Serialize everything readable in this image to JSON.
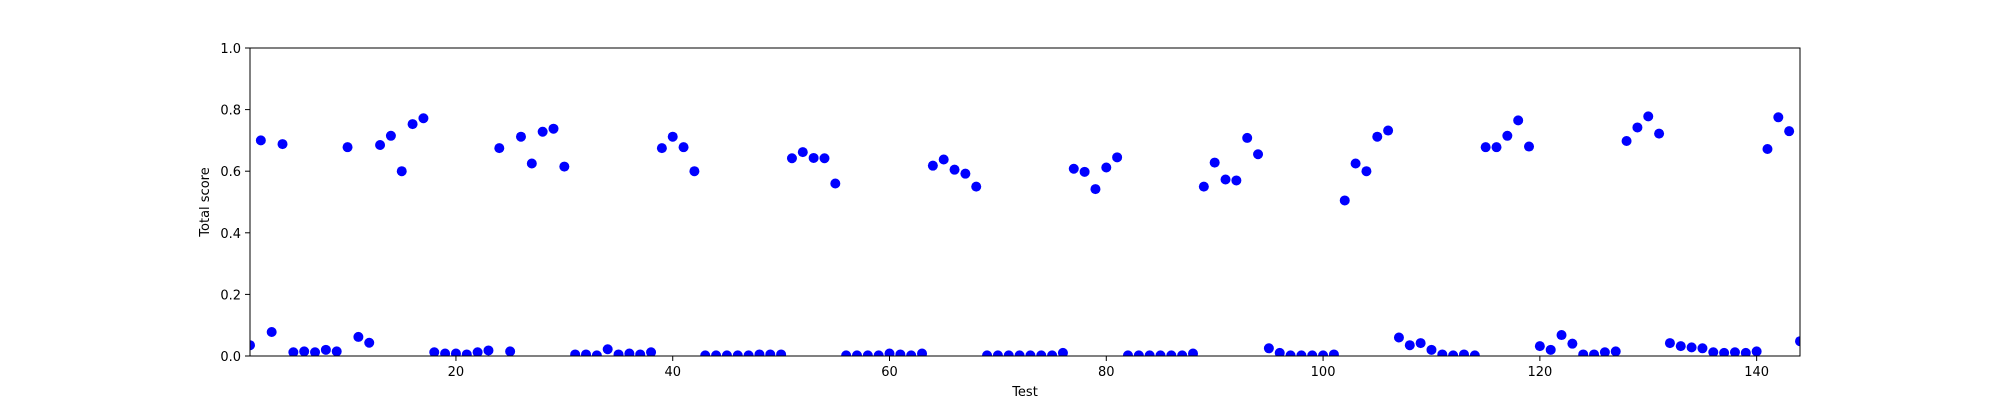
{
  "chart_data": {
    "type": "scatter",
    "title": "",
    "xlabel": "Test",
    "ylabel": "Total score",
    "xlim": [
      1,
      144
    ],
    "ylim": [
      0,
      1.0
    ],
    "xticks": [
      20,
      40,
      60,
      80,
      100,
      120,
      140
    ],
    "yticks": [
      0.0,
      0.2,
      0.4,
      0.6,
      0.8,
      1.0
    ],
    "xtick_labels": [
      "20",
      "40",
      "60",
      "80",
      "100",
      "120",
      "140"
    ],
    "ytick_labels": [
      "0.0",
      "0.2",
      "0.4",
      "0.6",
      "0.8",
      "1.0"
    ],
    "grid": false,
    "marker_color": "#0000ff",
    "x": [
      1,
      2,
      3,
      4,
      5,
      6,
      7,
      8,
      9,
      10,
      11,
      12,
      13,
      14,
      15,
      16,
      17,
      18,
      19,
      20,
      21,
      22,
      23,
      24,
      25,
      26,
      27,
      28,
      29,
      30,
      31,
      32,
      33,
      34,
      35,
      36,
      37,
      38,
      39,
      40,
      41,
      42,
      43,
      44,
      45,
      46,
      47,
      48,
      49,
      50,
      51,
      52,
      53,
      54,
      55,
      56,
      57,
      58,
      59,
      60,
      61,
      62,
      63,
      64,
      65,
      66,
      67,
      68,
      69,
      70,
      71,
      72,
      73,
      74,
      75,
      76,
      77,
      78,
      79,
      80,
      81,
      82,
      83,
      84,
      85,
      86,
      87,
      88,
      89,
      90,
      91,
      92,
      93,
      94,
      95,
      96,
      97,
      98,
      99,
      100,
      101,
      102,
      103,
      104,
      105,
      106,
      107,
      108,
      109,
      110,
      111,
      112,
      113,
      114,
      115,
      116,
      117,
      118,
      119,
      120,
      121,
      122,
      123,
      124,
      125,
      126,
      127,
      128,
      129,
      130,
      131,
      132,
      133,
      134,
      135,
      136,
      137,
      138,
      139,
      140,
      141,
      142,
      143,
      144
    ],
    "y": [
      0.035,
      0.7,
      0.078,
      0.688,
      0.012,
      0.015,
      0.012,
      0.02,
      0.015,
      0.678,
      0.062,
      0.043,
      0.685,
      0.715,
      0.6,
      0.753,
      0.772,
      0.012,
      0.008,
      0.008,
      0.005,
      0.012,
      0.018,
      0.675,
      0.015,
      0.712,
      0.625,
      0.728,
      0.738,
      0.615,
      0.005,
      0.005,
      0.002,
      0.022,
      0.005,
      0.008,
      0.005,
      0.012,
      0.675,
      0.712,
      0.678,
      0.6,
      0.002,
      0.002,
      0.002,
      0.002,
      0.002,
      0.005,
      0.005,
      0.005,
      0.642,
      0.662,
      0.643,
      0.642,
      0.56,
      0.002,
      0.002,
      0.002,
      0.002,
      0.008,
      0.005,
      0.002,
      0.008,
      0.618,
      0.638,
      0.605,
      0.592,
      0.55,
      0.002,
      0.002,
      0.002,
      0.002,
      0.002,
      0.002,
      0.002,
      0.01,
      0.608,
      0.598,
      0.542,
      0.612,
      0.645,
      0.002,
      0.002,
      0.002,
      0.002,
      0.002,
      0.002,
      0.008,
      0.55,
      0.628,
      0.573,
      0.57,
      0.708,
      0.655,
      0.025,
      0.01,
      0.002,
      0.002,
      0.002,
      0.002,
      0.005,
      0.505,
      0.625,
      0.6,
      0.712,
      0.732,
      0.06,
      0.035,
      0.042,
      0.02,
      0.005,
      0.002,
      0.005,
      0.002,
      0.678,
      0.678,
      0.715,
      0.765,
      0.68,
      0.032,
      0.02,
      0.068,
      0.04,
      0.005,
      0.005,
      0.012,
      0.015,
      0.698,
      0.742,
      0.778,
      0.722,
      0.042,
      0.032,
      0.028,
      0.025,
      0.012,
      0.01,
      0.012,
      0.01,
      0.015,
      0.672,
      0.775,
      0.73,
      0.048
    ]
  }
}
